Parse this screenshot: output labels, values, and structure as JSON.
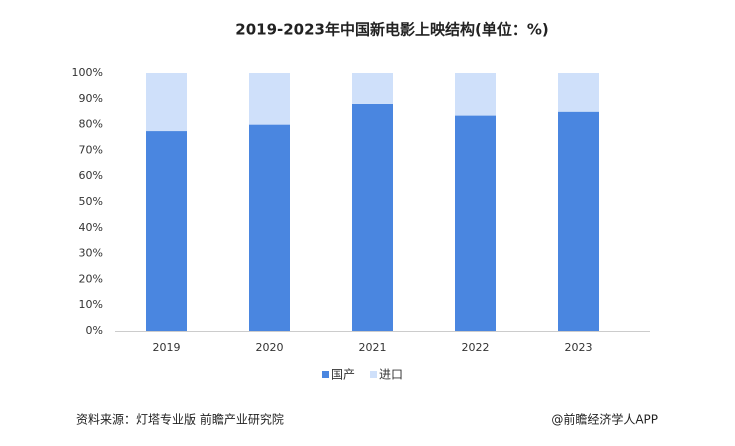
{
  "chart_data": {
    "type": "stacked_bar",
    "title": "2019-2023年中国新电影上映结构(单位：%)",
    "categories": [
      "2019",
      "2020",
      "2021",
      "2022",
      "2023"
    ],
    "series": [
      {
        "name": "国产",
        "color": "#4a86e0",
        "values": [
          77.5,
          80,
          88,
          83.5,
          85
        ]
      },
      {
        "name": "进口",
        "color": "#cfe0fa",
        "values": [
          22.5,
          20,
          12,
          16.5,
          15
        ]
      }
    ],
    "ylim": [
      0,
      100
    ],
    "yticks": [
      {
        "value": 0,
        "label": "0%"
      },
      {
        "value": 10,
        "label": "10%"
      },
      {
        "value": 20,
        "label": "20%"
      },
      {
        "value": 30,
        "label": "30%"
      },
      {
        "value": 40,
        "label": "40%"
      },
      {
        "value": 50,
        "label": "50%"
      },
      {
        "value": 60,
        "label": "60%"
      },
      {
        "value": 70,
        "label": "70%"
      },
      {
        "value": 80,
        "label": "80%"
      },
      {
        "value": 90,
        "label": "90%"
      },
      {
        "value": 100,
        "label": "100%"
      }
    ],
    "grid": false,
    "legend": "bottom",
    "source": "资料来源：灯塔专业版 前瞻产业研究院",
    "credit": "@前瞻经济学人APP"
  }
}
